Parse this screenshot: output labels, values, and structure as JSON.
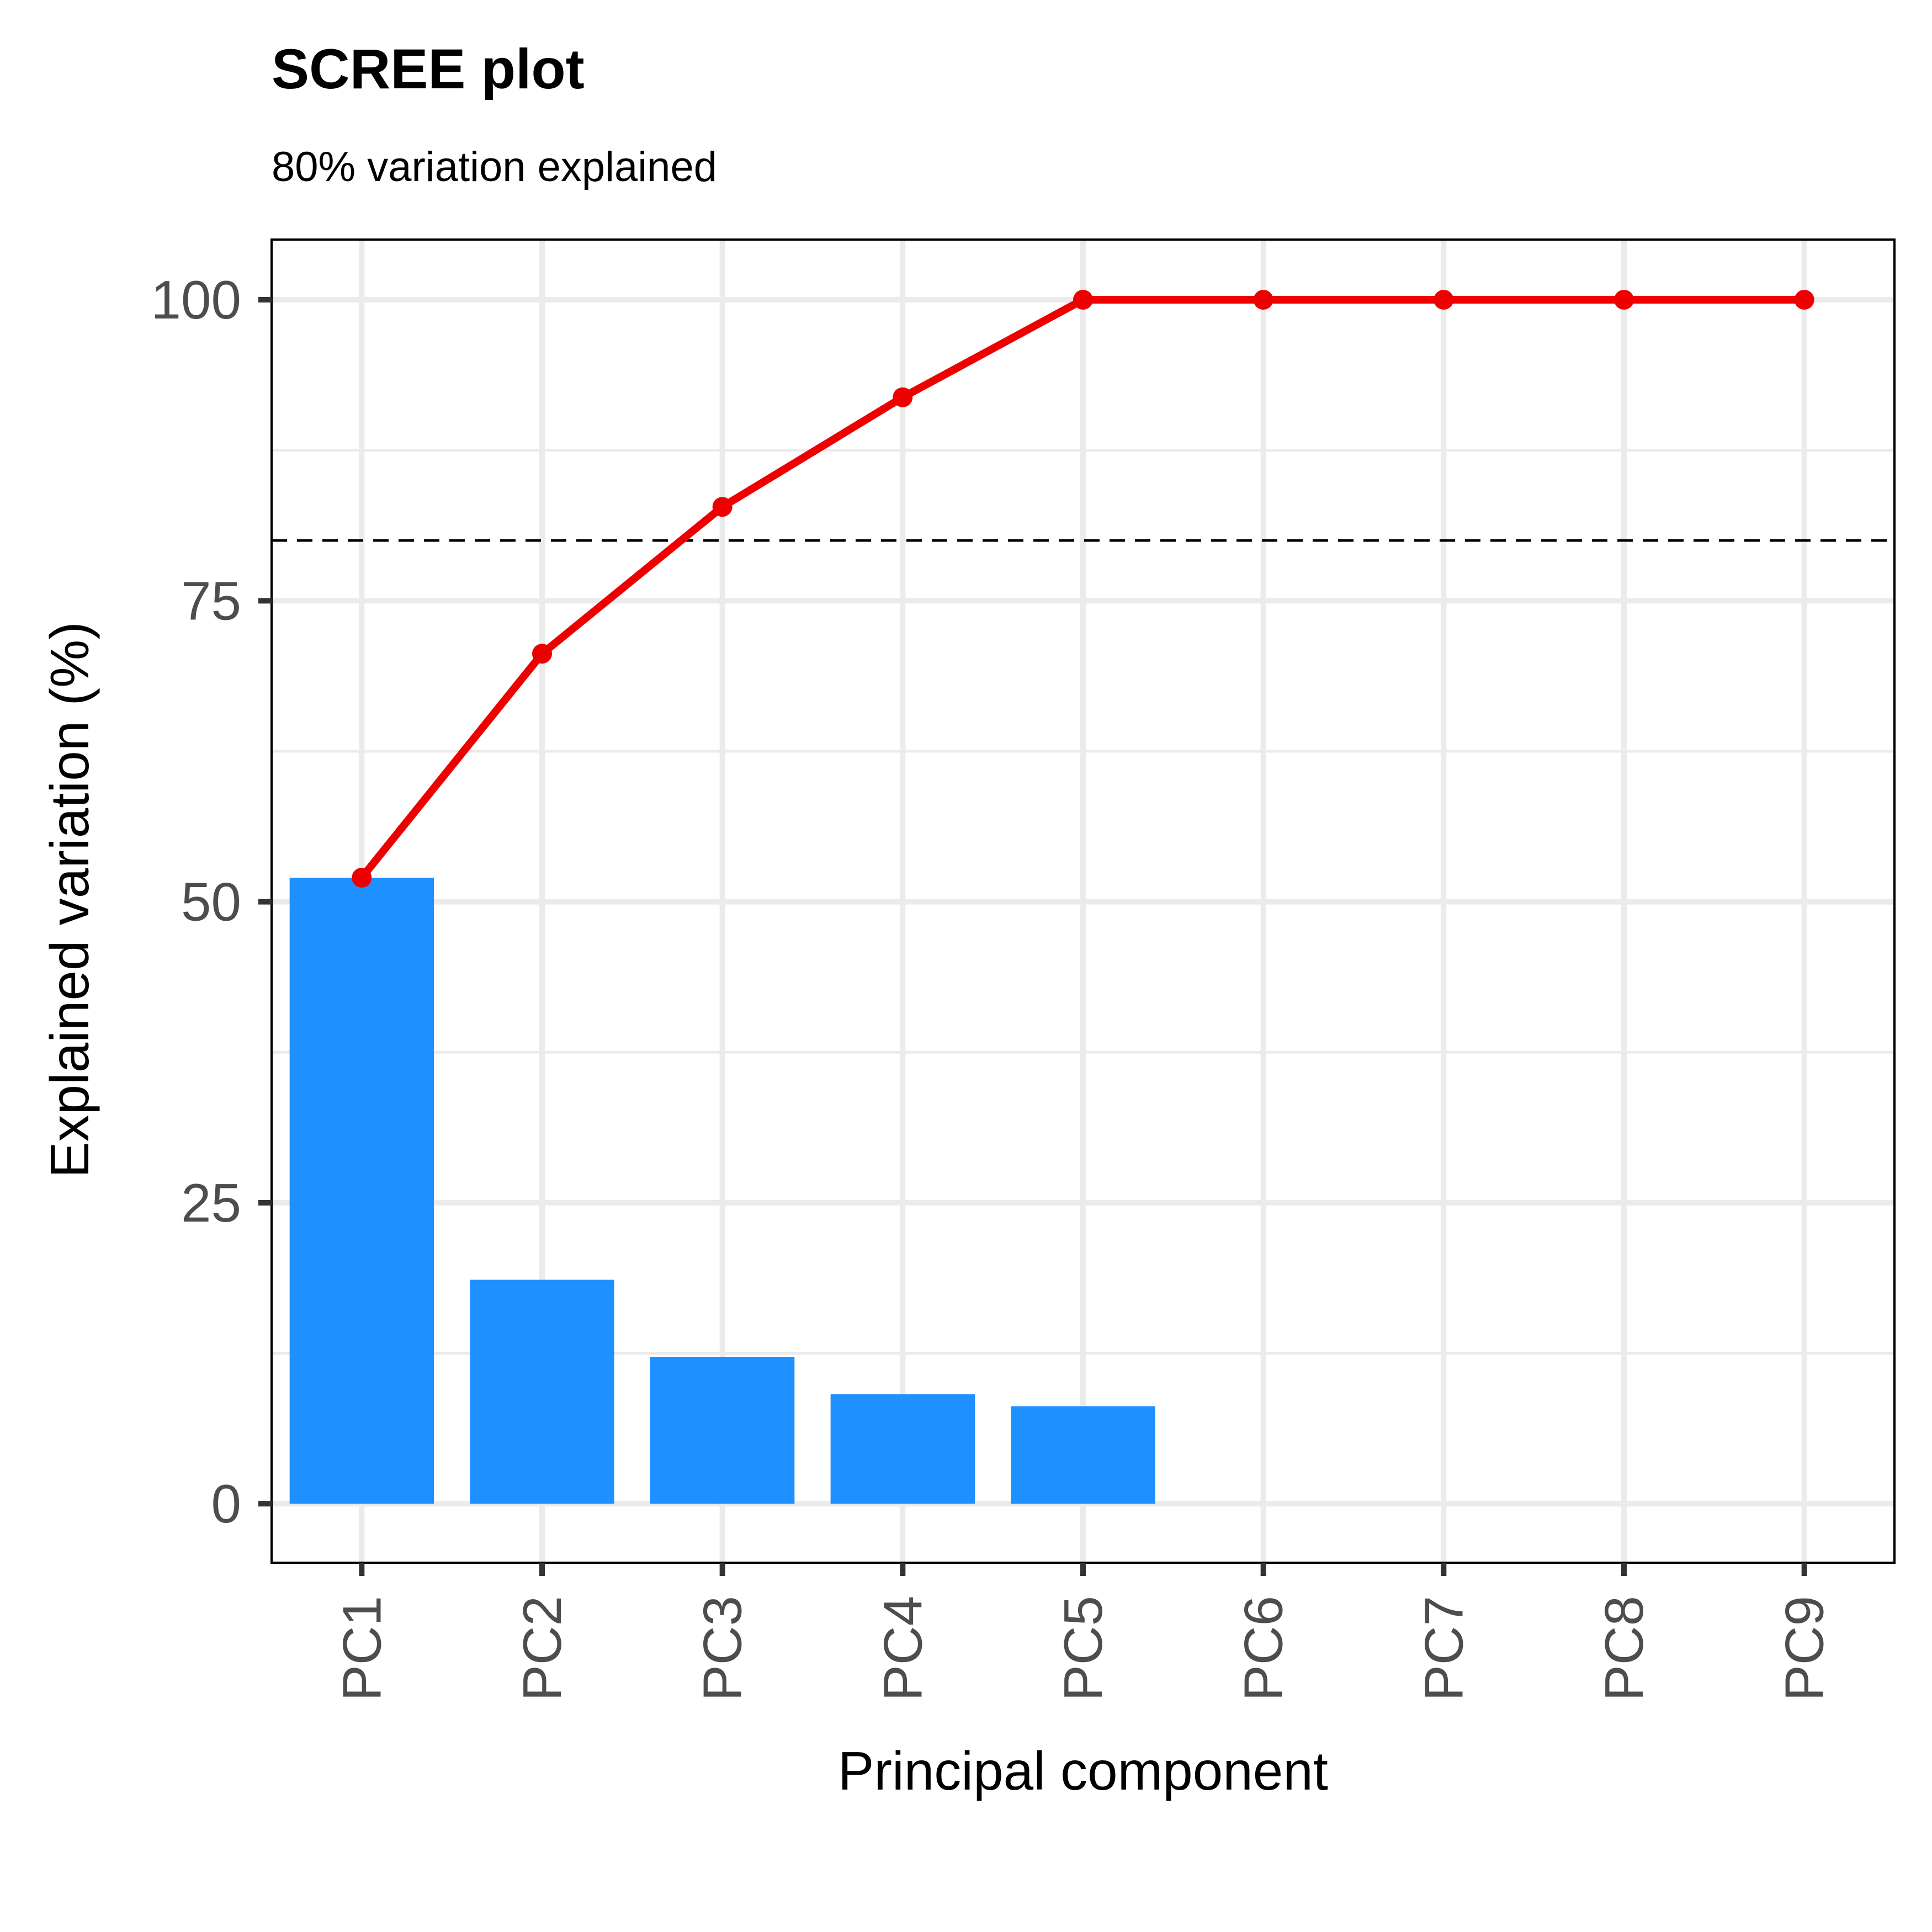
{
  "chart_data": {
    "type": "bar",
    "title": "SCREE plot",
    "subtitle": "80% variation explained",
    "xlabel": "Principal component",
    "ylabel": "Explained variation (%)",
    "categories": [
      "PC1",
      "PC2",
      "PC3",
      "PC4",
      "PC5",
      "PC6",
      "PC7",
      "PC8",
      "PC9"
    ],
    "series": [
      {
        "type": "bar",
        "values": [
          52.0,
          18.6,
          12.2,
          9.1,
          8.1,
          0,
          0,
          0,
          0
        ],
        "color": "#1E90FF"
      },
      {
        "type": "line",
        "values": [
          52.0,
          70.6,
          82.8,
          91.9,
          100,
          100,
          100,
          100,
          100
        ],
        "color": "#EE0000"
      }
    ],
    "reference_line": {
      "y": 80,
      "style": "dashed",
      "color": "#000000"
    },
    "ylim": [
      -4.9,
      105
    ],
    "yticks": [
      "0",
      "25",
      "50",
      "75",
      "100"
    ],
    "grid": true
  }
}
